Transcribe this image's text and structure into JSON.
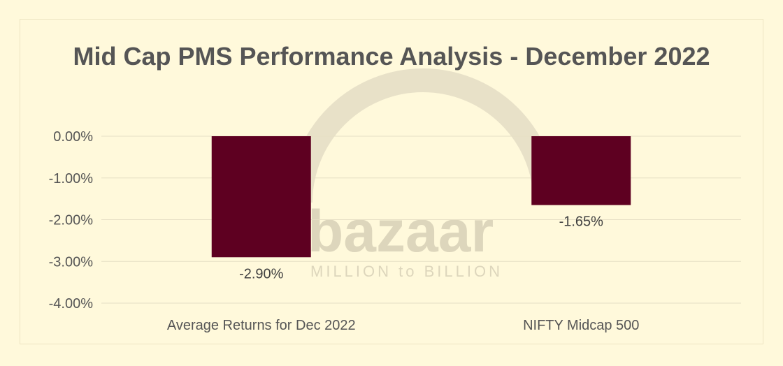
{
  "watermark": {
    "brand": "bazaar",
    "tagline": "MILLION to BILLION"
  },
  "colors": {
    "background": "#fff9db",
    "bar": "#5e0021",
    "text": "#555555",
    "grid": "#e6dfc4"
  },
  "chart_data": {
    "type": "bar",
    "title": "Mid Cap PMS Performance Analysis - December 2022",
    "categories": [
      "Average Returns for Dec 2022",
      "NIFTY Midcap 500"
    ],
    "series": [
      {
        "values": [
          -2.9,
          -1.65
        ]
      }
    ],
    "data_labels": [
      "-2.90%",
      "-1.65%"
    ],
    "y_ticks": [
      0,
      -1,
      -2,
      -3,
      -4
    ],
    "y_tick_labels": [
      "0.00%",
      "-1.00%",
      "-2.00%",
      "-3.00%",
      "-4.00%"
    ],
    "ylim": [
      -4,
      0
    ],
    "xlabel": "",
    "ylabel": "",
    "grid": true,
    "legend": "none"
  }
}
